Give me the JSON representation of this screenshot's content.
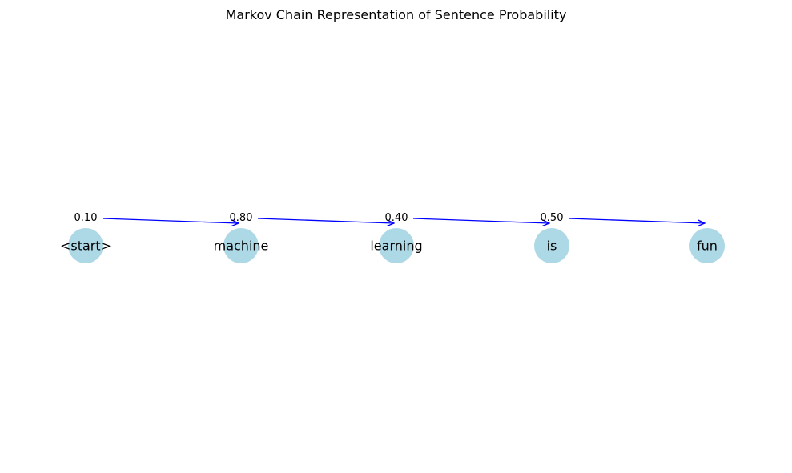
{
  "title": "Markov Chain Representation of Sentence Probability",
  "colors": {
    "node_fill": "#add8e6",
    "edge_color": "#0000ff",
    "text": "#000000"
  },
  "nodes": [
    {
      "id": "start",
      "label": "<start>"
    },
    {
      "id": "machine",
      "label": "machine"
    },
    {
      "id": "learning",
      "label": "learning"
    },
    {
      "id": "is",
      "label": "is"
    },
    {
      "id": "fun",
      "label": "fun"
    }
  ],
  "edges": [
    {
      "from": "start",
      "to": "machine",
      "probability": "0.10"
    },
    {
      "from": "machine",
      "to": "learning",
      "probability": "0.80"
    },
    {
      "from": "learning",
      "to": "is",
      "probability": "0.40"
    },
    {
      "from": "is",
      "to": "fun",
      "probability": "0.50"
    }
  ]
}
